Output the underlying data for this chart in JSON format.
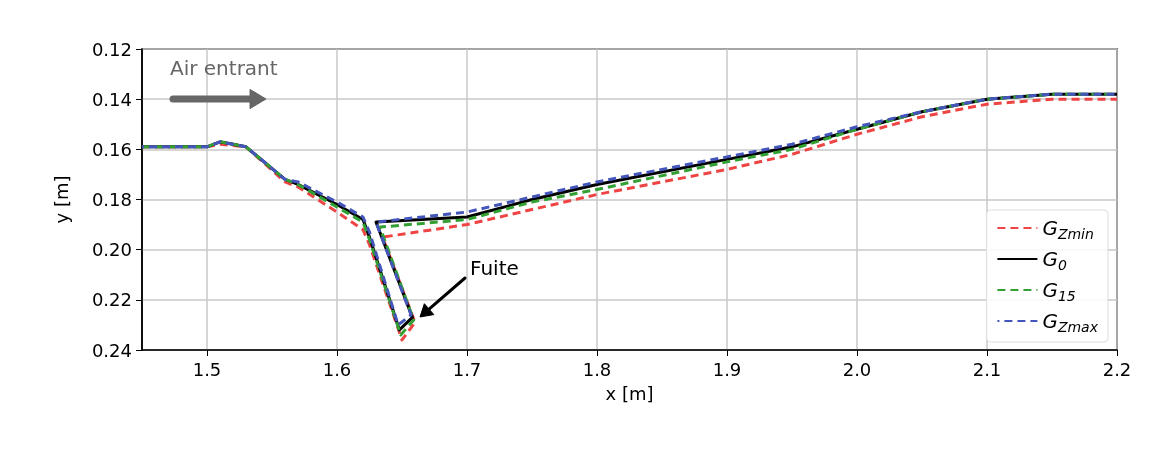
{
  "chart_data": {
    "type": "line",
    "xlabel": "x [m]",
    "ylabel": "y [m]",
    "xlim": [
      1.45,
      2.2
    ],
    "xticks": [
      1.5,
      1.6,
      1.7,
      1.8,
      1.9,
      {
        "value": 2,
        "label": "2.0"
      },
      2.1,
      2.2
    ],
    "ylim": [
      0.24,
      0.12
    ],
    "yticks": [
      0.12,
      0.14,
      0.16,
      0.18,
      {
        "value": 0.2,
        "label": "0.20"
      },
      0.22,
      0.24
    ],
    "grid": true,
    "legend": "bottom right",
    "marker": "none",
    "annotations": [
      "Air entrant",
      "Fuite"
    ],
    "series": [
      {
        "name": "G$_{Zmin}$",
        "color": "#ee4444",
        "line_style": "dashed",
        "x": [
          1.45,
          1.5,
          1.51,
          1.53,
          1.56,
          1.57,
          1.6,
          1.62,
          1.625,
          1.65,
          1.66,
          1.635,
          1.7,
          1.75,
          1.8,
          1.9,
          1.95,
          2.0,
          2.05,
          2.1,
          2.15,
          2.2
        ],
        "values": [
          0.159,
          0.159,
          0.158,
          0.159,
          0.173,
          0.175,
          0.185,
          0.192,
          0.198,
          0.236,
          0.229,
          0.195,
          0.19,
          0.184,
          0.178,
          0.168,
          0.162,
          0.154,
          0.147,
          0.142,
          0.14,
          0.14
        ]
      },
      {
        "name": "G$_{0}$",
        "color": "#000000",
        "line_style": "solid",
        "x": [
          1.45,
          1.5,
          1.51,
          1.53,
          1.56,
          1.57,
          1.6,
          1.62,
          1.625,
          1.648,
          1.658,
          1.63,
          1.7,
          1.75,
          1.8,
          1.9,
          1.95,
          2.0,
          2.05,
          2.1,
          2.15,
          2.2
        ],
        "values": [
          0.159,
          0.159,
          0.157,
          0.159,
          0.172,
          0.174,
          0.182,
          0.188,
          0.195,
          0.232,
          0.227,
          0.189,
          0.187,
          0.18,
          0.174,
          0.164,
          0.159,
          0.152,
          0.145,
          0.14,
          0.138,
          0.138
        ]
      },
      {
        "name": "G$_{15}$",
        "color": "#33a033",
        "line_style": "dashed",
        "x": [
          1.45,
          1.5,
          1.51,
          1.53,
          1.56,
          1.57,
          1.6,
          1.62,
          1.625,
          1.649,
          1.659,
          1.633,
          1.7,
          1.75,
          1.8,
          1.9,
          1.95,
          2.0,
          2.05,
          2.1,
          2.15,
          2.2
        ],
        "values": [
          0.159,
          0.159,
          0.157,
          0.159,
          0.172,
          0.174,
          0.183,
          0.189,
          0.196,
          0.234,
          0.228,
          0.191,
          0.188,
          0.181,
          0.176,
          0.165,
          0.16,
          0.152,
          0.145,
          0.14,
          0.138,
          0.138
        ]
      },
      {
        "name": "G$_{Zmax}$",
        "color": "#4455bb",
        "line_style": "dashed",
        "x": [
          1.45,
          1.5,
          1.51,
          1.53,
          1.56,
          1.57,
          1.6,
          1.62,
          1.625,
          1.647,
          1.657,
          1.63,
          1.7,
          1.75,
          1.8,
          1.9,
          1.95,
          2.0,
          2.05,
          2.1,
          2.15,
          2.2
        ],
        "values": [
          0.159,
          0.159,
          0.157,
          0.159,
          0.172,
          0.173,
          0.181,
          0.187,
          0.193,
          0.23,
          0.226,
          0.189,
          0.185,
          0.179,
          0.173,
          0.163,
          0.158,
          0.151,
          0.145,
          0.14,
          0.138,
          0.138
        ]
      }
    ]
  }
}
